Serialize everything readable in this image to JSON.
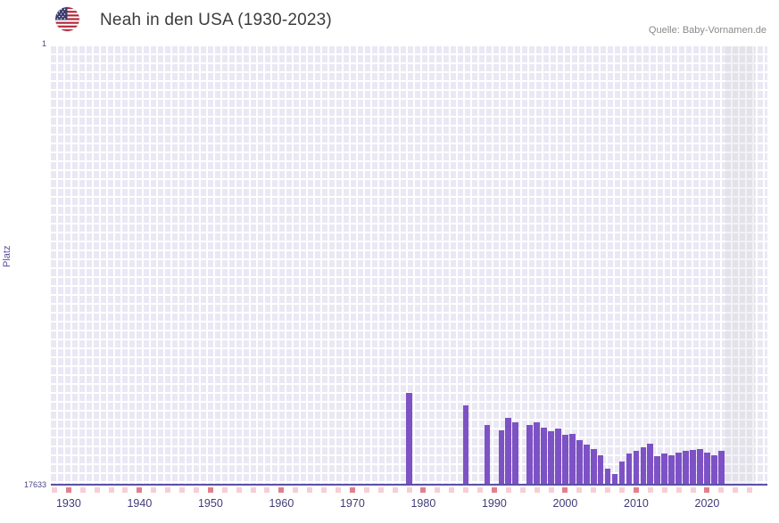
{
  "header": {
    "title": "Neah in den USA (1930-2023)",
    "source": "Quelle: Baby-Vornamen.de",
    "flag_icon": "us-flag"
  },
  "chart_data": {
    "type": "bar",
    "title": "Neah in den USA (1930-2023)",
    "xlabel": "",
    "ylabel": "Platz",
    "y_axis": {
      "top_label": "1",
      "bottom_label": "17633",
      "min": 1,
      "max": 17633,
      "inverted": true
    },
    "x_domain": [
      1927.5,
      2028.5
    ],
    "x_ticks": [
      1930,
      1940,
      1950,
      1960,
      1970,
      1980,
      1990,
      2000,
      2010,
      2020
    ],
    "legend": "none",
    "grid": "on",
    "points": [
      {
        "year": 1978,
        "rank": 13900
      },
      {
        "year": 1986,
        "rank": 14400
      },
      {
        "year": 1989,
        "rank": 15200
      },
      {
        "year": 1991,
        "rank": 15400
      },
      {
        "year": 1992,
        "rank": 14900
      },
      {
        "year": 1993,
        "rank": 15100
      },
      {
        "year": 1995,
        "rank": 15200
      },
      {
        "year": 1996,
        "rank": 15100
      },
      {
        "year": 1997,
        "rank": 15300
      },
      {
        "year": 1998,
        "rank": 15450
      },
      {
        "year": 1999,
        "rank": 15350
      },
      {
        "year": 2000,
        "rank": 15600
      },
      {
        "year": 2001,
        "rank": 15550
      },
      {
        "year": 2002,
        "rank": 15800
      },
      {
        "year": 2003,
        "rank": 16000
      },
      {
        "year": 2004,
        "rank": 16150
      },
      {
        "year": 2005,
        "rank": 16400
      },
      {
        "year": 2006,
        "rank": 16950
      },
      {
        "year": 2007,
        "rank": 17150
      },
      {
        "year": 2008,
        "rank": 16650
      },
      {
        "year": 2009,
        "rank": 16350
      },
      {
        "year": 2010,
        "rank": 16250
      },
      {
        "year": 2011,
        "rank": 16100
      },
      {
        "year": 2012,
        "rank": 15950
      },
      {
        "year": 2013,
        "rank": 16450
      },
      {
        "year": 2014,
        "rank": 16350
      },
      {
        "year": 2015,
        "rank": 16400
      },
      {
        "year": 2016,
        "rank": 16300
      },
      {
        "year": 2017,
        "rank": 16250
      },
      {
        "year": 2018,
        "rank": 16200
      },
      {
        "year": 2019,
        "rank": 16150
      },
      {
        "year": 2020,
        "rank": 16300
      },
      {
        "year": 2021,
        "rank": 16400
      },
      {
        "year": 2022,
        "rank": 16250
      }
    ],
    "recent_band": {
      "from": 2022.6,
      "to": 2026.8
    },
    "minor_ticks": {
      "from": 1928,
      "to": 2026,
      "step": 2
    },
    "colors": {
      "bar": "#7d52c5",
      "plot_bg": "#eae8f4",
      "grid": "#ffffff",
      "axis": "#5c50a5",
      "band": "#e3e2ea",
      "minor_tick": "#f6cfd6",
      "minor_tick_decade": "#e2808e",
      "tick_label": "#403c78",
      "flag_red": "#b22234",
      "flag_blue": "#3c3b6e"
    }
  }
}
